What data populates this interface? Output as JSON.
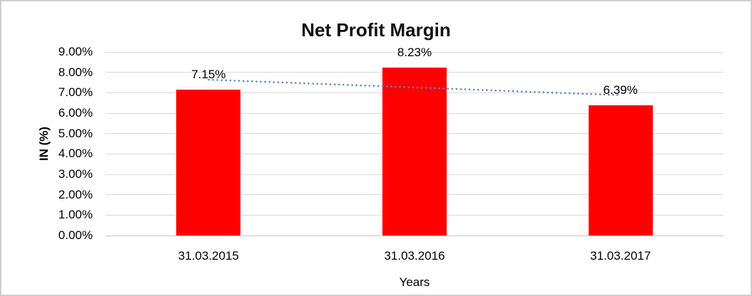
{
  "chart_data": {
    "type": "bar",
    "title": "Net Profit Margin",
    "xlabel": "Years",
    "ylabel": "IN (%)",
    "categories": [
      "31.03.2015",
      "31.03.2016",
      "31.03.2017"
    ],
    "values": [
      7.15,
      8.23,
      6.39
    ],
    "data_labels": [
      "7.15%",
      "8.23%",
      "6.39%"
    ],
    "ytick_labels": [
      "0.00%",
      "1.00%",
      "2.00%",
      "3.00%",
      "4.00%",
      "5.00%",
      "6.00%",
      "7.00%",
      "8.00%",
      "9.00%"
    ],
    "ytick_step": 1,
    "ylim": [
      0,
      9
    ],
    "grid": "horizontal",
    "legend": "none",
    "bar_color": "#ff0000",
    "gridline_color": "#d9d9d9",
    "trendline": {
      "type": "linear",
      "style": "dotted",
      "color": "#5588c7",
      "start_value": 7.64,
      "end_value": 6.88
    }
  }
}
